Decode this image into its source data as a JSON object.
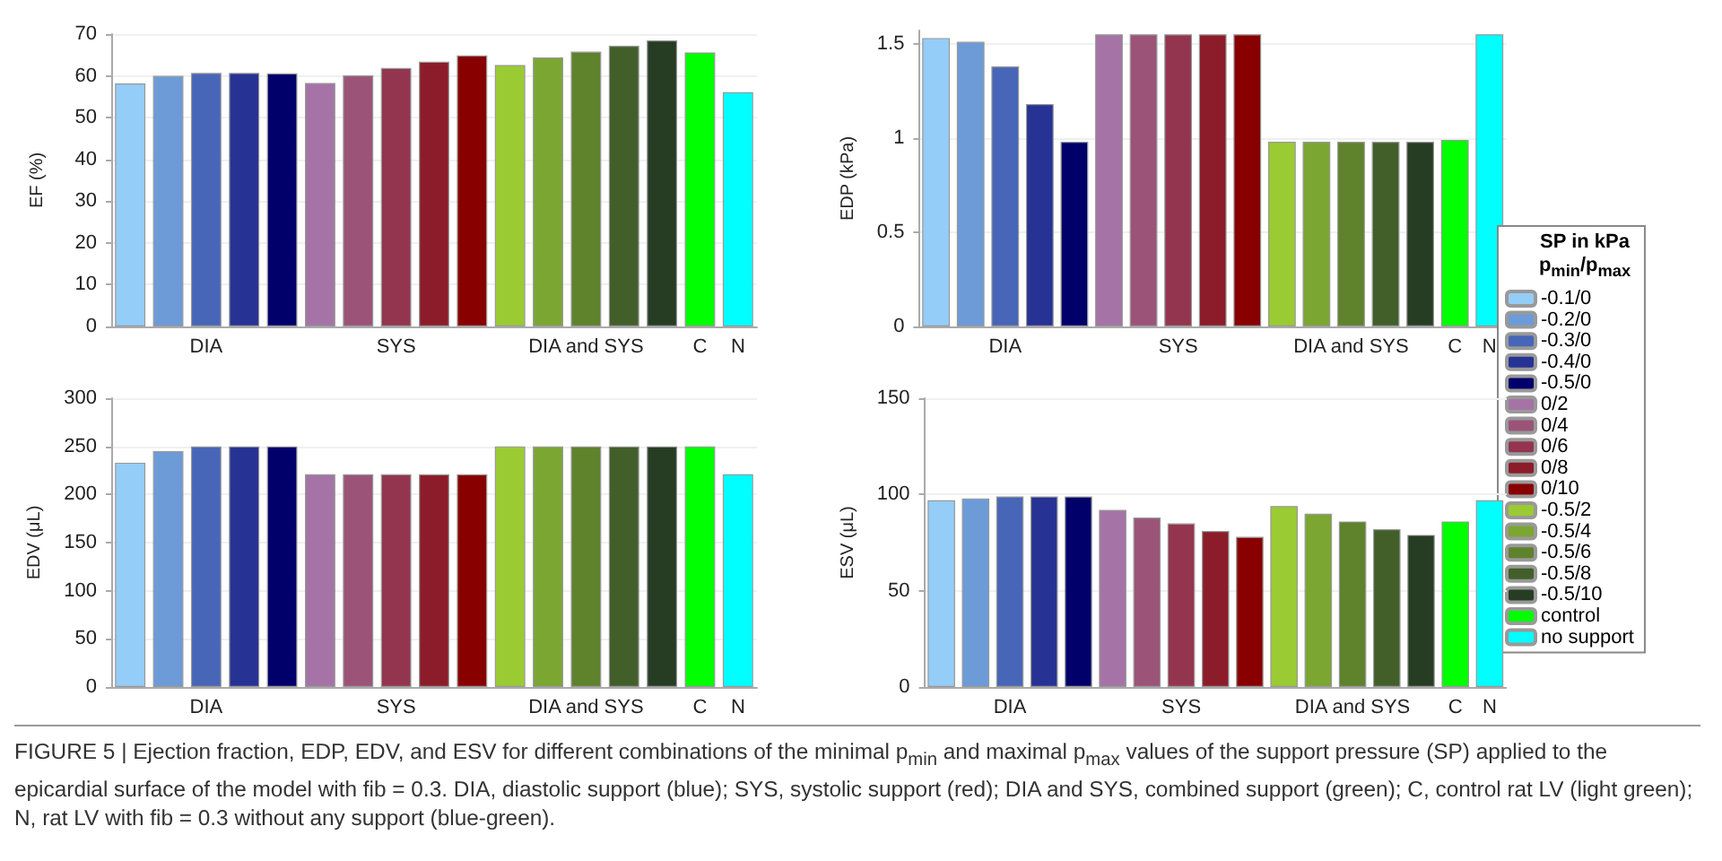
{
  "chart_data": [
    {
      "type": "bar",
      "ylabel": "EF (%)",
      "categories": [
        null,
        null,
        "DIA",
        null,
        null,
        null,
        null,
        "SYS",
        null,
        null,
        null,
        null,
        "DIA and SYS",
        null,
        null,
        "C",
        "N"
      ],
      "ylim": [
        0,
        70
      ],
      "yticks": [
        0,
        10,
        20,
        30,
        40,
        50,
        60,
        70
      ],
      "grid": "y",
      "legend": false,
      "series": [
        {
          "color": "#94cdf7",
          "values": [
            58.2,
            null,
            null,
            null,
            null,
            null,
            null,
            null,
            null,
            null,
            null,
            null,
            null,
            null,
            null,
            null,
            null
          ]
        },
        {
          "color": "#6c9bd8",
          "values": [
            null,
            60,
            null,
            null,
            null,
            null,
            null,
            null,
            null,
            null,
            null,
            null,
            null,
            null,
            null,
            null,
            null
          ]
        },
        {
          "color": "#4866b8",
          "values": [
            null,
            null,
            60.7,
            null,
            null,
            null,
            null,
            null,
            null,
            null,
            null,
            null,
            null,
            null,
            null,
            null,
            null
          ]
        },
        {
          "color": "#263394",
          "values": [
            null,
            null,
            null,
            60.7,
            null,
            null,
            null,
            null,
            null,
            null,
            null,
            null,
            null,
            null,
            null,
            null,
            null
          ]
        },
        {
          "color": "#01006b",
          "values": [
            null,
            null,
            null,
            null,
            60.6,
            null,
            null,
            null,
            null,
            null,
            null,
            null,
            null,
            null,
            null,
            null,
            null
          ]
        },
        {
          "color": "#a573a6",
          "values": [
            null,
            null,
            null,
            null,
            null,
            58.3,
            null,
            null,
            null,
            null,
            null,
            null,
            null,
            null,
            null,
            null,
            null
          ]
        },
        {
          "color": "#9b5478",
          "values": [
            null,
            null,
            null,
            null,
            null,
            null,
            60.1,
            null,
            null,
            null,
            null,
            null,
            null,
            null,
            null,
            null,
            null
          ]
        },
        {
          "color": "#943550",
          "values": [
            null,
            null,
            null,
            null,
            null,
            null,
            null,
            61.9,
            null,
            null,
            null,
            null,
            null,
            null,
            null,
            null,
            null
          ]
        },
        {
          "color": "#8c1c2a",
          "values": [
            null,
            null,
            null,
            null,
            null,
            null,
            null,
            null,
            63.4,
            null,
            null,
            null,
            null,
            null,
            null,
            null,
            null
          ]
        },
        {
          "color": "#880000",
          "values": [
            null,
            null,
            null,
            null,
            null,
            null,
            null,
            null,
            null,
            64.9,
            null,
            null,
            null,
            null,
            null,
            null,
            null
          ]
        },
        {
          "color": "#9acb33",
          "values": [
            null,
            null,
            null,
            null,
            null,
            null,
            null,
            null,
            null,
            null,
            62.6,
            null,
            null,
            null,
            null,
            null,
            null
          ]
        },
        {
          "color": "#7ba632",
          "values": [
            null,
            null,
            null,
            null,
            null,
            null,
            null,
            null,
            null,
            null,
            null,
            64.4,
            null,
            null,
            null,
            null,
            null
          ]
        },
        {
          "color": "#5f822c",
          "values": [
            null,
            null,
            null,
            null,
            null,
            null,
            null,
            null,
            null,
            null,
            null,
            null,
            65.8,
            null,
            null,
            null,
            null
          ]
        },
        {
          "color": "#425f29",
          "values": [
            null,
            null,
            null,
            null,
            null,
            null,
            null,
            null,
            null,
            null,
            null,
            null,
            null,
            67.2,
            null,
            null,
            null
          ]
        },
        {
          "color": "#263d24",
          "values": [
            null,
            null,
            null,
            null,
            null,
            null,
            null,
            null,
            null,
            null,
            null,
            null,
            null,
            null,
            68.5,
            null,
            null
          ]
        },
        {
          "color": "#00ff00",
          "values": [
            null,
            null,
            null,
            null,
            null,
            null,
            null,
            null,
            null,
            null,
            null,
            null,
            null,
            null,
            null,
            65.6,
            null
          ]
        },
        {
          "color": "#00ffff",
          "values": [
            null,
            null,
            null,
            null,
            null,
            null,
            null,
            null,
            null,
            null,
            null,
            null,
            null,
            null,
            null,
            null,
            56.1
          ]
        }
      ]
    },
    {
      "type": "bar",
      "ylabel": "EDP (kPa)",
      "categories": [
        null,
        null,
        "DIA",
        null,
        null,
        null,
        null,
        "SYS",
        null,
        null,
        null,
        null,
        "DIA and SYS",
        null,
        null,
        "C",
        "N"
      ],
      "ylim": [
        0,
        1.57
      ],
      "yticks": [
        0,
        0.5,
        1,
        1.5
      ],
      "grid": "y",
      "legend": "right",
      "legend_title": "SP in kPa p$_{min}$/p$_{max}$",
      "series": [
        {
          "name": "-0.1/0",
          "color": "#94cdf7",
          "values": [
            1.53,
            null,
            null,
            null,
            null,
            null,
            null,
            null,
            null,
            null,
            null,
            null,
            null,
            null,
            null,
            null,
            null
          ]
        },
        {
          "name": "-0.2/0",
          "color": "#6c9bd8",
          "values": [
            null,
            1.51,
            null,
            null,
            null,
            null,
            null,
            null,
            null,
            null,
            null,
            null,
            null,
            null,
            null,
            null,
            null
          ]
        },
        {
          "name": "-0.3/0",
          "color": "#4866b8",
          "values": [
            null,
            null,
            1.38,
            null,
            null,
            null,
            null,
            null,
            null,
            null,
            null,
            null,
            null,
            null,
            null,
            null,
            null
          ]
        },
        {
          "name": "-0.4/0",
          "color": "#263394",
          "values": [
            null,
            null,
            null,
            1.18,
            null,
            null,
            null,
            null,
            null,
            null,
            null,
            null,
            null,
            null,
            null,
            null,
            null
          ]
        },
        {
          "name": "-0.5/0",
          "color": "#01006b",
          "values": [
            null,
            null,
            null,
            null,
            0.98,
            null,
            null,
            null,
            null,
            null,
            null,
            null,
            null,
            null,
            null,
            null,
            null
          ]
        },
        {
          "name": "0/2",
          "color": "#a573a6",
          "values": [
            null,
            null,
            null,
            null,
            null,
            1.55,
            null,
            null,
            null,
            null,
            null,
            null,
            null,
            null,
            null,
            null,
            null
          ]
        },
        {
          "name": "0/4",
          "color": "#9b5478",
          "values": [
            null,
            null,
            null,
            null,
            null,
            null,
            1.55,
            null,
            null,
            null,
            null,
            null,
            null,
            null,
            null,
            null,
            null
          ]
        },
        {
          "name": "0/6",
          "color": "#943550",
          "values": [
            null,
            null,
            null,
            null,
            null,
            null,
            null,
            1.55,
            null,
            null,
            null,
            null,
            null,
            null,
            null,
            null,
            null
          ]
        },
        {
          "name": "0/8",
          "color": "#8c1c2a",
          "values": [
            null,
            null,
            null,
            null,
            null,
            null,
            null,
            null,
            1.55,
            null,
            null,
            null,
            null,
            null,
            null,
            null,
            null
          ]
        },
        {
          "name": "0/10",
          "color": "#880000",
          "values": [
            null,
            null,
            null,
            null,
            null,
            null,
            null,
            null,
            null,
            1.55,
            null,
            null,
            null,
            null,
            null,
            null,
            null
          ]
        },
        {
          "name": "-0.5/2",
          "color": "#9acb33",
          "values": [
            null,
            null,
            null,
            null,
            null,
            null,
            null,
            null,
            null,
            null,
            0.98,
            null,
            null,
            null,
            null,
            null,
            null
          ]
        },
        {
          "name": "-0.5/4",
          "color": "#7ba632",
          "values": [
            null,
            null,
            null,
            null,
            null,
            null,
            null,
            null,
            null,
            null,
            null,
            0.98,
            null,
            null,
            null,
            null,
            null
          ]
        },
        {
          "name": "-0.5/6",
          "color": "#5f822c",
          "values": [
            null,
            null,
            null,
            null,
            null,
            null,
            null,
            null,
            null,
            null,
            null,
            null,
            0.98,
            null,
            null,
            null,
            null
          ]
        },
        {
          "name": "-0.5/8",
          "color": "#425f29",
          "values": [
            null,
            null,
            null,
            null,
            null,
            null,
            null,
            null,
            null,
            null,
            null,
            null,
            null,
            0.98,
            null,
            null,
            null
          ]
        },
        {
          "name": "-0.5/10",
          "color": "#263d24",
          "values": [
            null,
            null,
            null,
            null,
            null,
            null,
            null,
            null,
            null,
            null,
            null,
            null,
            null,
            null,
            0.98,
            null,
            null
          ]
        },
        {
          "name": "control",
          "color": "#00ff00",
          "values": [
            null,
            null,
            null,
            null,
            null,
            null,
            null,
            null,
            null,
            null,
            null,
            null,
            null,
            null,
            null,
            0.99,
            null
          ]
        },
        {
          "name": "no support",
          "color": "#00ffff",
          "values": [
            null,
            null,
            null,
            null,
            null,
            null,
            null,
            null,
            null,
            null,
            null,
            null,
            null,
            null,
            null,
            null,
            1.55
          ]
        }
      ]
    },
    {
      "type": "bar",
      "ylabel": "EDV (μL)",
      "categories": [
        null,
        null,
        "DIA",
        null,
        null,
        null,
        null,
        "SYS",
        null,
        null,
        null,
        null,
        "DIA and SYS",
        null,
        null,
        "C",
        "N"
      ],
      "ylim": [
        0,
        300
      ],
      "yticks": [
        0,
        50,
        100,
        150,
        200,
        250,
        300
      ],
      "grid": "y",
      "legend": false,
      "series": [
        {
          "color": "#94cdf7",
          "values": [
            233,
            null,
            null,
            null,
            null,
            null,
            null,
            null,
            null,
            null,
            null,
            null,
            null,
            null,
            null,
            null,
            null
          ]
        },
        {
          "color": "#6c9bd8",
          "values": [
            null,
            245,
            null,
            null,
            null,
            null,
            null,
            null,
            null,
            null,
            null,
            null,
            null,
            null,
            null,
            null,
            null
          ]
        },
        {
          "color": "#4866b8",
          "values": [
            null,
            null,
            250,
            null,
            null,
            null,
            null,
            null,
            null,
            null,
            null,
            null,
            null,
            null,
            null,
            null,
            null
          ]
        },
        {
          "color": "#263394",
          "values": [
            null,
            null,
            null,
            250,
            null,
            null,
            null,
            null,
            null,
            null,
            null,
            null,
            null,
            null,
            null,
            null,
            null
          ]
        },
        {
          "color": "#01006b",
          "values": [
            null,
            null,
            null,
            null,
            250,
            null,
            null,
            null,
            null,
            null,
            null,
            null,
            null,
            null,
            null,
            null,
            null
          ]
        },
        {
          "color": "#a573a6",
          "values": [
            null,
            null,
            null,
            null,
            null,
            221,
            null,
            null,
            null,
            null,
            null,
            null,
            null,
            null,
            null,
            null,
            null
          ]
        },
        {
          "color": "#9b5478",
          "values": [
            null,
            null,
            null,
            null,
            null,
            null,
            221,
            null,
            null,
            null,
            null,
            null,
            null,
            null,
            null,
            null,
            null
          ]
        },
        {
          "color": "#943550",
          "values": [
            null,
            null,
            null,
            null,
            null,
            null,
            null,
            221,
            null,
            null,
            null,
            null,
            null,
            null,
            null,
            null,
            null
          ]
        },
        {
          "color": "#8c1c2a",
          "values": [
            null,
            null,
            null,
            null,
            null,
            null,
            null,
            null,
            221,
            null,
            null,
            null,
            null,
            null,
            null,
            null,
            null
          ]
        },
        {
          "color": "#880000",
          "values": [
            null,
            null,
            null,
            null,
            null,
            null,
            null,
            null,
            null,
            221,
            null,
            null,
            null,
            null,
            null,
            null,
            null
          ]
        },
        {
          "color": "#9acb33",
          "values": [
            null,
            null,
            null,
            null,
            null,
            null,
            null,
            null,
            null,
            null,
            250,
            null,
            null,
            null,
            null,
            null,
            null
          ]
        },
        {
          "color": "#7ba632",
          "values": [
            null,
            null,
            null,
            null,
            null,
            null,
            null,
            null,
            null,
            null,
            null,
            250,
            null,
            null,
            null,
            null,
            null
          ]
        },
        {
          "color": "#5f822c",
          "values": [
            null,
            null,
            null,
            null,
            null,
            null,
            null,
            null,
            null,
            null,
            null,
            null,
            250,
            null,
            null,
            null,
            null
          ]
        },
        {
          "color": "#425f29",
          "values": [
            null,
            null,
            null,
            null,
            null,
            null,
            null,
            null,
            null,
            null,
            null,
            null,
            null,
            250,
            null,
            null,
            null
          ]
        },
        {
          "color": "#263d24",
          "values": [
            null,
            null,
            null,
            null,
            null,
            null,
            null,
            null,
            null,
            null,
            null,
            null,
            null,
            null,
            250,
            null,
            null
          ]
        },
        {
          "color": "#00ff00",
          "values": [
            null,
            null,
            null,
            null,
            null,
            null,
            null,
            null,
            null,
            null,
            null,
            null,
            null,
            null,
            null,
            250,
            null
          ]
        },
        {
          "color": "#00ffff",
          "values": [
            null,
            null,
            null,
            null,
            null,
            null,
            null,
            null,
            null,
            null,
            null,
            null,
            null,
            null,
            null,
            null,
            221
          ]
        }
      ]
    },
    {
      "type": "bar",
      "ylabel": "ESV (μL)",
      "categories": [
        null,
        null,
        "DIA",
        null,
        null,
        null,
        null,
        "SYS",
        null,
        null,
        null,
        null,
        "DIA and SYS",
        null,
        null,
        "C",
        "N"
      ],
      "ylim": [
        0,
        150
      ],
      "yticks": [
        0,
        50,
        100,
        150
      ],
      "grid": "y",
      "legend": false,
      "annotations": [
        "FIGURE 5 | Ejection fraction, EDP, EDV, and ESV for different combinations of the minimal p$_{min}$ and maximal p$_{max}$ values of the support pressure (SP) applied to the epicardial surface of the model with fib = 0.3. DIA, diastolic support (blue); SYS, systolic support (red); DIA and SYS, combined support (green); C, control rat LV (light green); N, rat LV with fib = 0.3 without any support (blue-green)."
      ],
      "series": [
        {
          "color": "#94cdf7",
          "values": [
            97,
            null,
            null,
            null,
            null,
            null,
            null,
            null,
            null,
            null,
            null,
            null,
            null,
            null,
            null,
            null,
            null
          ]
        },
        {
          "color": "#6c9bd8",
          "values": [
            null,
            98,
            null,
            null,
            null,
            null,
            null,
            null,
            null,
            null,
            null,
            null,
            null,
            null,
            null,
            null,
            null
          ]
        },
        {
          "color": "#4866b8",
          "values": [
            null,
            null,
            99,
            null,
            null,
            null,
            null,
            null,
            null,
            null,
            null,
            null,
            null,
            null,
            null,
            null,
            null
          ]
        },
        {
          "color": "#263394",
          "values": [
            null,
            null,
            null,
            99,
            null,
            null,
            null,
            null,
            null,
            null,
            null,
            null,
            null,
            null,
            null,
            null,
            null
          ]
        },
        {
          "color": "#01006b",
          "values": [
            null,
            null,
            null,
            null,
            99,
            null,
            null,
            null,
            null,
            null,
            null,
            null,
            null,
            null,
            null,
            null,
            null
          ]
        },
        {
          "color": "#a573a6",
          "values": [
            null,
            null,
            null,
            null,
            null,
            92,
            null,
            null,
            null,
            null,
            null,
            null,
            null,
            null,
            null,
            null,
            null
          ]
        },
        {
          "color": "#9b5478",
          "values": [
            null,
            null,
            null,
            null,
            null,
            null,
            88,
            null,
            null,
            null,
            null,
            null,
            null,
            null,
            null,
            null,
            null
          ]
        },
        {
          "color": "#943550",
          "values": [
            null,
            null,
            null,
            null,
            null,
            null,
            null,
            85,
            null,
            null,
            null,
            null,
            null,
            null,
            null,
            null,
            null
          ]
        },
        {
          "color": "#8c1c2a",
          "values": [
            null,
            null,
            null,
            null,
            null,
            null,
            null,
            null,
            81,
            null,
            null,
            null,
            null,
            null,
            null,
            null,
            null
          ]
        },
        {
          "color": "#880000",
          "values": [
            null,
            null,
            null,
            null,
            null,
            null,
            null,
            null,
            null,
            78,
            null,
            null,
            null,
            null,
            null,
            null,
            null
          ]
        },
        {
          "color": "#9acb33",
          "values": [
            null,
            null,
            null,
            null,
            null,
            null,
            null,
            null,
            null,
            null,
            94,
            null,
            null,
            null,
            null,
            null,
            null
          ]
        },
        {
          "color": "#7ba632",
          "values": [
            null,
            null,
            null,
            null,
            null,
            null,
            null,
            null,
            null,
            null,
            null,
            90,
            null,
            null,
            null,
            null,
            null
          ]
        },
        {
          "color": "#5f822c",
          "values": [
            null,
            null,
            null,
            null,
            null,
            null,
            null,
            null,
            null,
            null,
            null,
            null,
            86,
            null,
            null,
            null,
            null
          ]
        },
        {
          "color": "#425f29",
          "values": [
            null,
            null,
            null,
            null,
            null,
            null,
            null,
            null,
            null,
            null,
            null,
            null,
            null,
            82,
            null,
            null,
            null
          ]
        },
        {
          "color": "#263d24",
          "values": [
            null,
            null,
            null,
            null,
            null,
            null,
            null,
            null,
            null,
            null,
            null,
            null,
            null,
            null,
            79,
            null,
            null
          ]
        },
        {
          "color": "#00ff00",
          "values": [
            null,
            null,
            null,
            null,
            null,
            null,
            null,
            null,
            null,
            null,
            null,
            null,
            null,
            null,
            null,
            86,
            null
          ]
        },
        {
          "color": "#00ffff",
          "values": [
            null,
            null,
            null,
            null,
            null,
            null,
            null,
            null,
            null,
            null,
            null,
            null,
            null,
            null,
            null,
            null,
            97
          ]
        }
      ]
    }
  ]
}
